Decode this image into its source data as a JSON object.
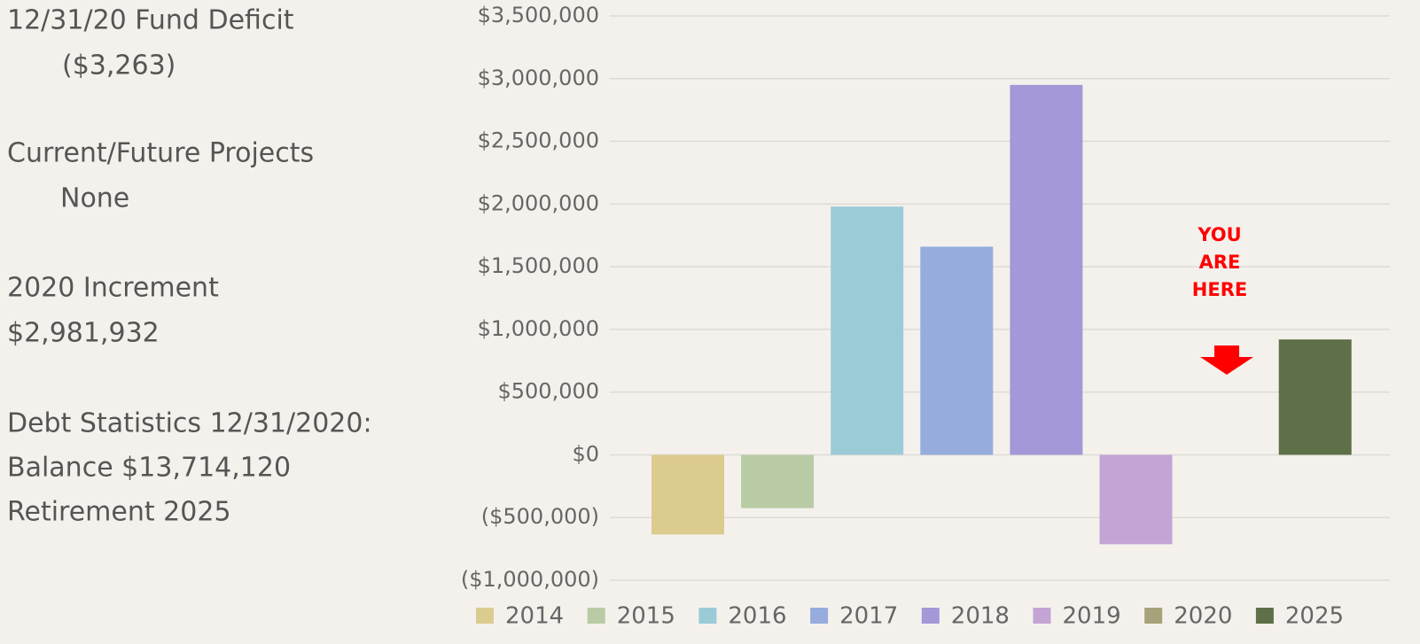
{
  "notes": [
    "12/31/20 Fund Deficit",
    "($3,263)",
    "Current/Future Projects",
    "None",
    "2020 Increment",
    "$2,981,932",
    "Debt Statistics 12/31/2020:",
    "Balance $13,714,120",
    "Retirement  2025"
  ],
  "chart_data": {
    "type": "bar",
    "series": [
      {
        "name": "2014",
        "color": "#dccb8e",
        "values": [
          -635000
        ]
      },
      {
        "name": "2015",
        "color": "#b9cba4",
        "values": [
          -425000
        ]
      },
      {
        "name": "2016",
        "color": "#9ccbd8",
        "values": [
          1980000
        ]
      },
      {
        "name": "2017",
        "color": "#95acdc",
        "values": [
          1660000
        ]
      },
      {
        "name": "2018",
        "color": "#a597d8",
        "values": [
          2950000
        ]
      },
      {
        "name": "2019",
        "color": "#c4a4d4",
        "values": [
          -713000
        ]
      },
      {
        "name": "2020",
        "color": "#a8a27a",
        "values": [
          0
        ]
      },
      {
        "name": "2025",
        "color": "#5d7048",
        "values": [
          920000
        ]
      }
    ],
    "ylim": [
      -1000000,
      3500000
    ],
    "yticks": [
      {
        "value": -1000000,
        "label": "($1,000,000)"
      },
      {
        "value": -500000,
        "label": "($500,000)"
      },
      {
        "value": 0,
        "label": "$0"
      },
      {
        "value": 500000,
        "label": "$500,000"
      },
      {
        "value": 1000000,
        "label": "$1,000,000"
      },
      {
        "value": 1500000,
        "label": "$1,500,000"
      },
      {
        "value": 2000000,
        "label": "$2,000,000"
      },
      {
        "value": 2500000,
        "label": "$2,500,000"
      },
      {
        "value": 3000000,
        "label": "$3,000,000"
      },
      {
        "value": 3500000,
        "label": "$3,500,000"
      }
    ],
    "grid": true,
    "legend": "bottom",
    "annotation": [
      "YOU",
      "ARE",
      "HERE"
    ],
    "annotation_color": "#ff0000"
  }
}
